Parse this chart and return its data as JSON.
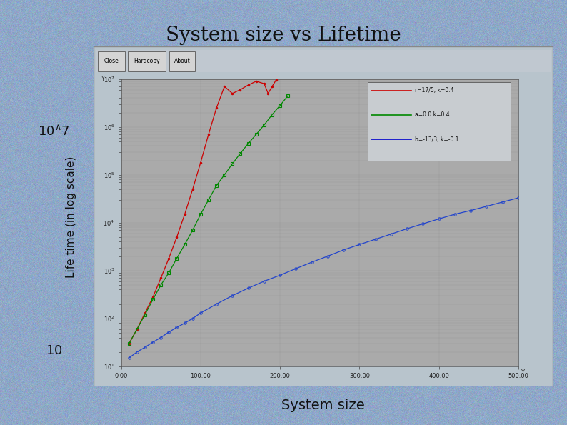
{
  "title": "System size vs Lifetime",
  "xlabel": "System size",
  "ylabel": "Life time (in log scale)",
  "background_color": "#8fa8c8",
  "plot_bg_color": "#aaaaaa",
  "outer_panel_color": "#b8c8d8",
  "xlim": [
    0,
    500
  ],
  "ylim_log": [
    10,
    10000000.0
  ],
  "legend_labels": [
    "r=17/5, k=0.4",
    "a=0.0 k=0.4",
    "b=-13/3, k=-0.1"
  ],
  "legend_colors": [
    "#cc0000",
    "#008800",
    "#0000cc"
  ],
  "red_x": [
    10,
    20,
    30,
    40,
    50,
    60,
    70,
    80,
    90,
    100,
    110,
    120,
    130,
    140,
    150,
    160,
    170,
    180,
    185,
    190,
    195
  ],
  "red_y": [
    30,
    60,
    130,
    280,
    700,
    1800,
    5000,
    15000,
    50000,
    180000,
    700000,
    2500000,
    7000000,
    5000000,
    6000000,
    7500000,
    9000000,
    8000000,
    5000000,
    7000000,
    9500000
  ],
  "green_x": [
    10,
    20,
    30,
    40,
    50,
    60,
    70,
    80,
    90,
    100,
    110,
    120,
    130,
    140,
    150,
    160,
    170,
    180,
    190,
    200,
    210
  ],
  "green_y": [
    30,
    60,
    120,
    250,
    500,
    900,
    1800,
    3500,
    7000,
    15000,
    30000,
    60000,
    100000,
    170000,
    280000,
    450000,
    700000,
    1100000,
    1800000,
    2800000,
    4500000
  ],
  "blue_x": [
    10,
    20,
    30,
    40,
    50,
    60,
    70,
    80,
    90,
    100,
    120,
    140,
    160,
    180,
    200,
    220,
    240,
    260,
    280,
    300,
    320,
    340,
    360,
    380,
    400,
    420,
    440,
    460,
    480,
    500
  ],
  "blue_y": [
    15,
    20,
    25,
    32,
    40,
    52,
    65,
    80,
    100,
    130,
    200,
    300,
    430,
    600,
    800,
    1100,
    1500,
    2000,
    2700,
    3500,
    4500,
    5800,
    7500,
    9500,
    12000,
    15000,
    18000,
    22000,
    27000,
    33000
  ],
  "title_fontsize": 20,
  "xlabel_fontsize": 14,
  "left_label_10_7": "10^7",
  "left_label_10": "10",
  "fig_width": 7.94,
  "fig_height": 5.95
}
